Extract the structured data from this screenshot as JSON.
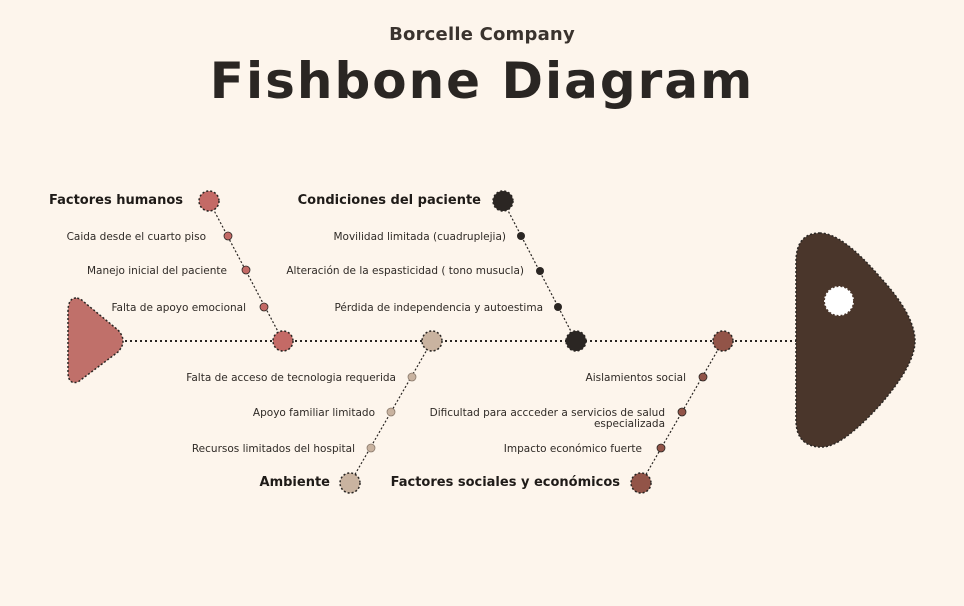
{
  "company": "Borcelle Company",
  "title": "Fishbone Diagram",
  "colors": {
    "background": "#fdf5ec",
    "tail": "#c0706a",
    "head": "#4a362b",
    "factores_humanos": "#c46a66",
    "condiciones_paciente": "#2b2623",
    "ambiente": "#c9b3a0",
    "factores_sociales": "#925448"
  },
  "categories": {
    "humanos": {
      "label": "Factores humanos",
      "causes": [
        "Caida desde el cuarto piso",
        "Manejo inicial del paciente",
        "Falta de apoyo emocional"
      ]
    },
    "paciente": {
      "label": "Condiciones del paciente",
      "causes": [
        "Movilidad limitada (cuadruplejia)",
        "Alteración de la espasticidad ( tono musucla)",
        "Pérdida de independencia y autoestima"
      ]
    },
    "ambiente": {
      "label": "Ambiente",
      "causes": [
        "Falta de acceso de tecnologia requerida",
        "Apoyo familiar limitado",
        "Recursos limitados del hospital"
      ]
    },
    "sociales": {
      "label": "Factores sociales y económicos",
      "causes": [
        "Aislamientos social",
        "Dificultad para accceder a servicios de salud",
        "especializada",
        "Impacto económico fuerte"
      ]
    }
  }
}
